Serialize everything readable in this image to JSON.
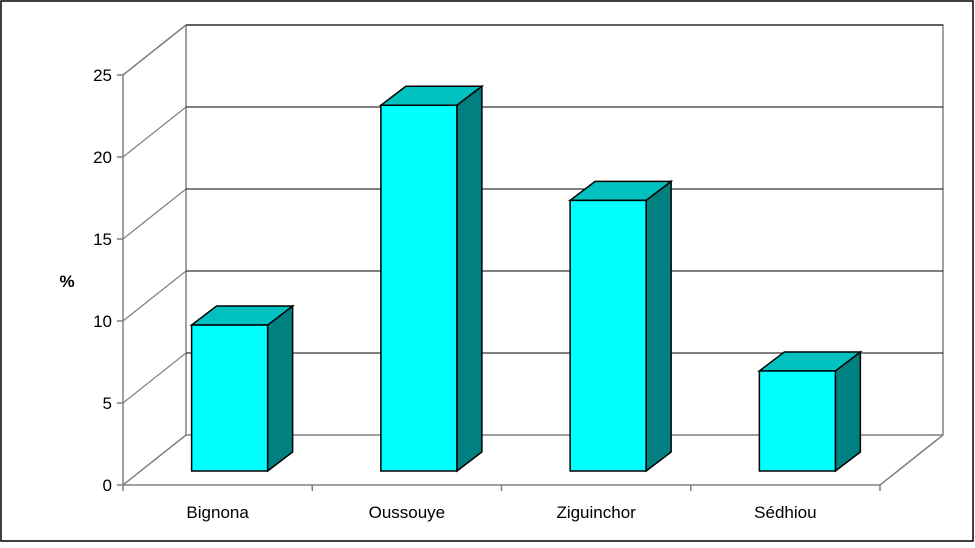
{
  "chart_data": {
    "type": "bar",
    "title": "",
    "xlabel": "",
    "ylabel": "%",
    "categories": [
      "Bignona",
      "Oussouye",
      "Ziguinchor",
      "Sédhiou"
    ],
    "values": [
      8.9,
      22.3,
      16.5,
      6.1
    ],
    "ylim": [
      0,
      25
    ],
    "yticks": [
      "0",
      "5",
      "10",
      "15",
      "20",
      "25"
    ],
    "grid": true,
    "legend": "none",
    "colors": {
      "bar_front": "#00FFFF",
      "bar_top": "#00C0C0",
      "bar_side": "#008080",
      "gridline": "#000000",
      "wall": "#808080",
      "frame": "#000000"
    }
  }
}
